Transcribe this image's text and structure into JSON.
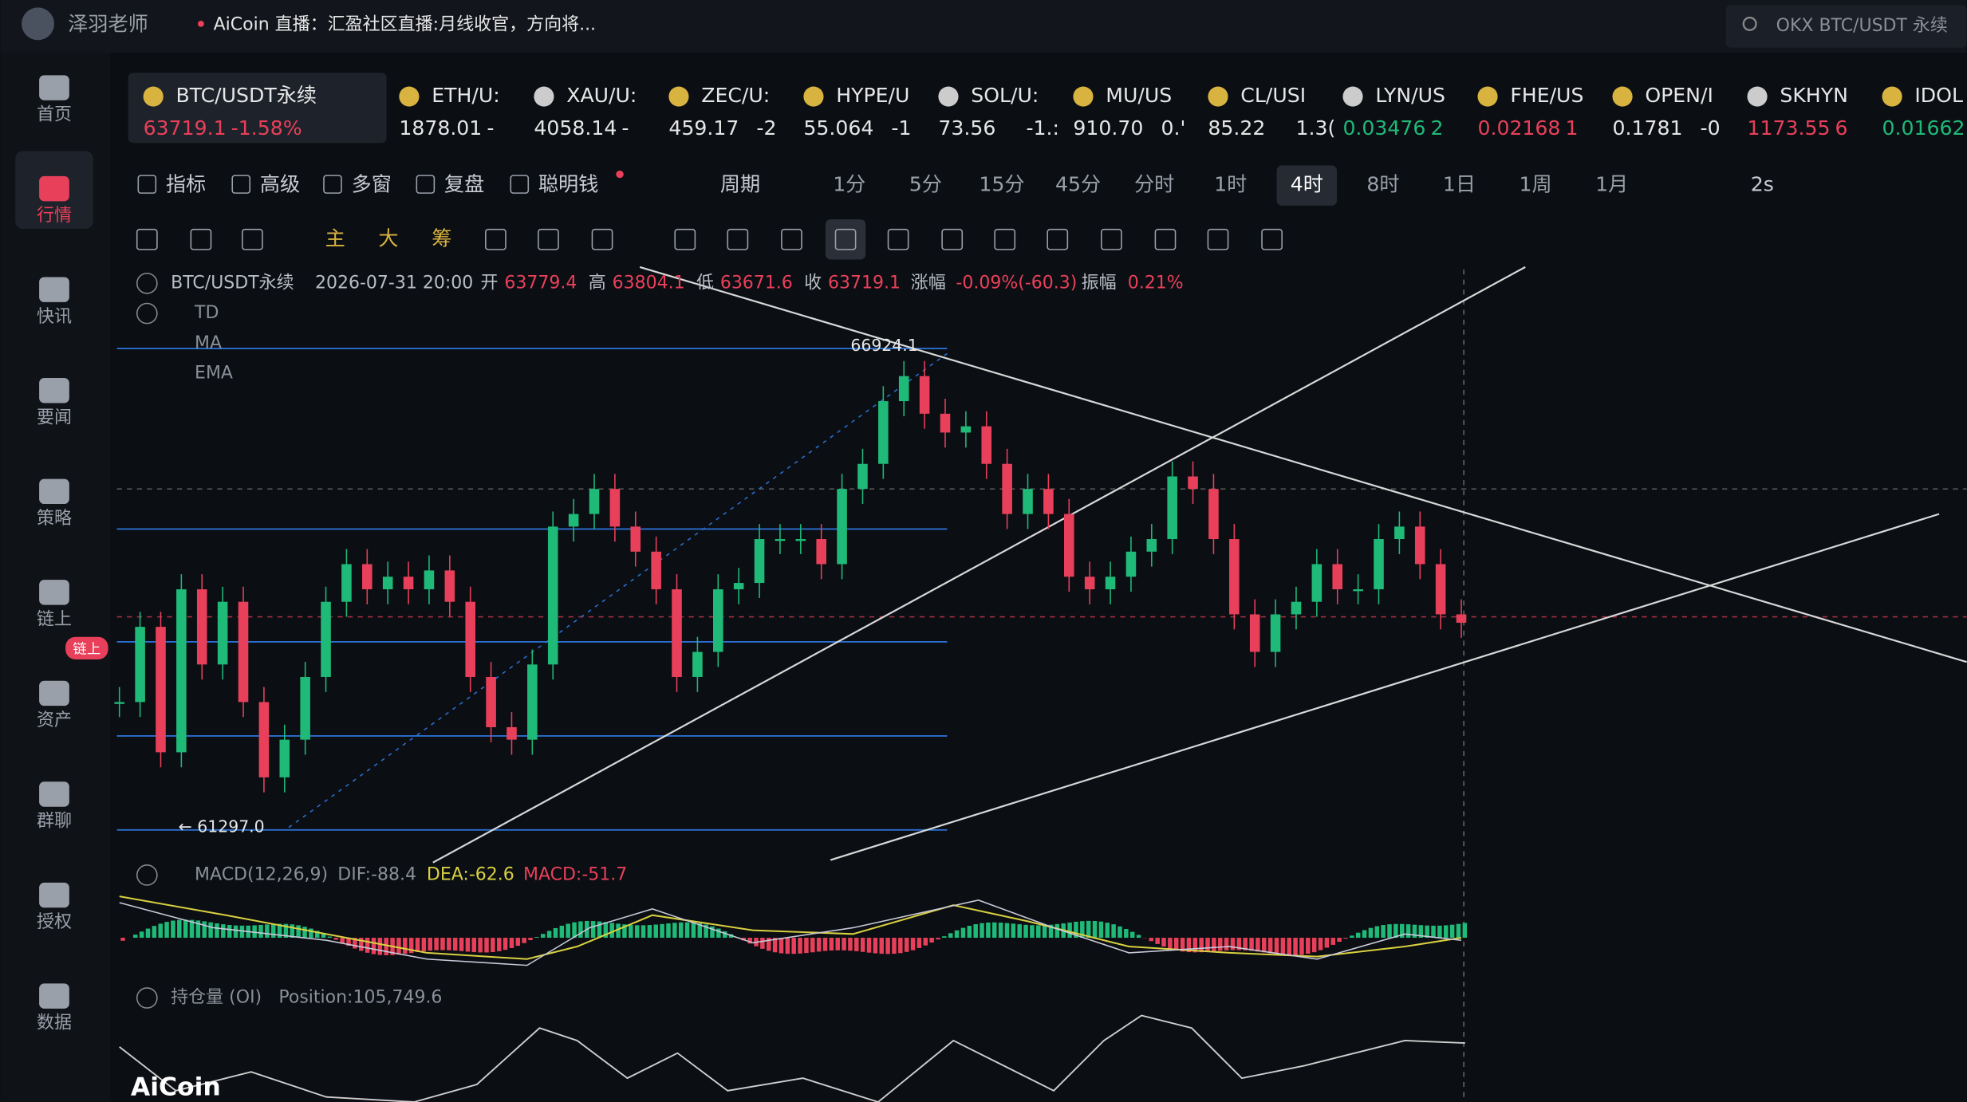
{
  "header": {
    "user": "泽羽老师",
    "live": "AiCoin 直播：汇盈社区直播:月线收官，方向将...",
    "search": "OKX BTC/USDT 永续"
  },
  "sidebar": [
    {
      "label": "首页"
    },
    {
      "label": "行情",
      "active": true
    },
    {
      "label": "快讯"
    },
    {
      "label": "要闻"
    },
    {
      "label": "策略"
    },
    {
      "label": "链上"
    },
    {
      "label": "资产",
      "badge": "链上"
    },
    {
      "label": "群聊"
    },
    {
      "label": "授权"
    },
    {
      "label": "数据"
    }
  ],
  "tickers": [
    {
      "name": "BTC/USDT永续",
      "price": "63719.1",
      "change": "-1.58%",
      "color": "#e8405a",
      "active": true
    },
    {
      "name": "ETH/U:",
      "price": "1878.01",
      "change": "-",
      "color": "#e6e6e6"
    },
    {
      "name": "XAU/U:",
      "price": "4058.14",
      "change": "-",
      "color": "#e6e6e6"
    },
    {
      "name": "ZEC/U:",
      "price": "459.17",
      "change": "-2",
      "color": "#e6e6e6"
    },
    {
      "name": "HYPE/U",
      "price": "55.064",
      "change": "-1",
      "color": "#e6e6e6"
    },
    {
      "name": "SOL/U:",
      "price": "73.56",
      "change": "-1.:",
      "color": "#e6e6e6"
    },
    {
      "name": "MU/US",
      "price": "910.70",
      "change": "0.'",
      "color": "#e6e6e6"
    },
    {
      "name": "CL/USI",
      "price": "85.22",
      "change": "1.3(",
      "color": "#e6e6e6"
    },
    {
      "name": "LYN/US",
      "price": "0.03476",
      "change": "2",
      "color": "#1fb978"
    },
    {
      "name": "FHE/US",
      "price": "0.02168",
      "change": "1",
      "color": "#e8405a"
    },
    {
      "name": "OPEN/I",
      "price": "0.1781",
      "change": "-0",
      "color": "#e6e6e6"
    },
    {
      "name": "SKHYN",
      "price": "1173.55",
      "change": "6",
      "color": "#e8405a"
    },
    {
      "name": "IDOL",
      "price": "0.01662",
      "change": "",
      "color": "#1fb978"
    }
  ],
  "toolbar": {
    "tools": [
      "指标",
      "高级",
      "多窗",
      "复盘",
      "聪明钱"
    ],
    "period_label": "周期",
    "periods": [
      "1分",
      "5分",
      "15分",
      "45分",
      "分时",
      "1时",
      "4时",
      "8时",
      "1日",
      "1周",
      "1月"
    ],
    "active_period": "4时",
    "refresh": "2s",
    "draw_tools": [
      "主",
      "大",
      "筹"
    ]
  },
  "legend": {
    "symbol": "BTC/USDT永续",
    "time": "2026-07-31 20:00",
    "open_label": "开",
    "open": "63779.4",
    "high_label": "高",
    "high": "63804.1",
    "low_label": "低",
    "low": "63671.6",
    "close_label": "收",
    "close": "63719.1",
    "change_label": "涨幅",
    "change": "-0.09%(-60.3)",
    "amp_label": "振幅",
    "amp": "0.21%",
    "indicators": [
      "TD",
      "MA",
      "EMA"
    ]
  },
  "chart": {
    "high_label": "66924.1",
    "high": 66924.1,
    "low_label": "← 61297.0",
    "low": 61297.0,
    "closes": [
      62792,
      63671,
      62205,
      64110,
      63231,
      63964,
      62792,
      61912,
      62352,
      63085,
      63964,
      64404,
      64110,
      64257,
      64110,
      64330,
      63964,
      63085,
      62498,
      62352,
      63231,
      64843,
      64990,
      65283,
      64843,
      64550,
      64110,
      63085,
      63378,
      64110,
      64184,
      64697,
      64697,
      64697,
      64404,
      65283,
      65576,
      66309,
      66602,
      66162,
      65942,
      66015,
      65576,
      64990,
      65283,
      64990,
      64257,
      64110,
      64257,
      64550,
      64697,
      65429,
      65283,
      64697,
      63817,
      63378,
      63817,
      63964,
      64404,
      64110,
      64110,
      64697,
      64843,
      64404,
      63817,
      63719
    ]
  },
  "macd": {
    "name": "MACD(12,26,9)",
    "dif": "DIF:-88.4",
    "dea": "DEA:-62.6",
    "macd": "MACD:-51.7"
  },
  "oi": {
    "name": "持仓量 (OI)",
    "position": "Position:105,749.6"
  },
  "logo": "AiCoin"
}
